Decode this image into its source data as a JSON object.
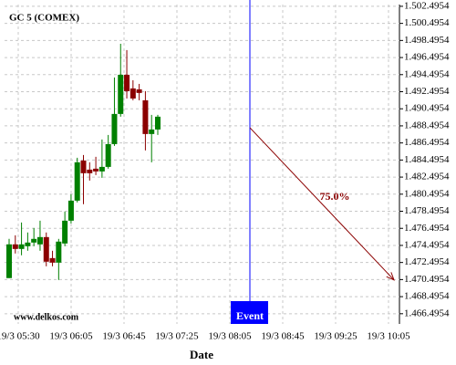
{
  "chart_data": {
    "type": "candlestick",
    "title": "GC 5 (COMEX)",
    "watermark": "www.delkos.com",
    "x_label": "Date",
    "x_tick_labels": [
      "19/3 05:30",
      "19/3 06:05",
      "19/3 06:45",
      "19/3 07:25",
      "19/3 08:05",
      "19/3 08:45",
      "19/3 09:25",
      "19/3 10:05"
    ],
    "open": [
      1470.67,
      1474.62,
      1474.08,
      1474.4,
      1474.83,
      1474.62,
      1475.47,
      1473.01,
      1472.48,
      1474.72,
      1477.39,
      1479.74,
      1484.44,
      1483.37,
      1483.48,
      1483.16,
      1483.69,
      1486.36,
      1489.89,
      1494.48,
      1492.88,
      1492.77,
      1491.49,
      1487.54,
      1488.07
    ],
    "high": [
      1475.26,
      1475.68,
      1477.18,
      1476.01,
      1476.54,
      1477.39,
      1476.01,
      1473.87,
      1475.26,
      1478.46,
      1480.49,
      1484.76,
      1485.08,
      1484.23,
      1484.87,
      1486.9,
      1487.43,
      1494.16,
      1498.11,
      1497.37,
      1493.84,
      1493.41,
      1492.56,
      1489.78,
      1489.78
    ],
    "low": [
      1470.67,
      1473.55,
      1473.34,
      1473.87,
      1474.4,
      1473.87,
      1472.05,
      1472.05,
      1470.45,
      1474.4,
      1477.07,
      1479.53,
      1479.32,
      1482.09,
      1482.73,
      1482.41,
      1483.48,
      1486.15,
      1489.57,
      1491.7,
      1491.49,
      1491.49,
      1485.62,
      1484.23,
      1487.43
    ],
    "close": [
      1474.62,
      1474.08,
      1474.62,
      1474.83,
      1475.26,
      1475.47,
      1472.59,
      1472.48,
      1474.94,
      1477.39,
      1479.74,
      1484.23,
      1482.95,
      1482.95,
      1483.16,
      1483.69,
      1486.36,
      1489.89,
      1494.48,
      1492.56,
      1491.7,
      1492.35,
      1487.54,
      1488.07,
      1489.57
    ],
    "up_color": "#008000",
    "down_color": "#8b0000",
    "event": {
      "label": "Event",
      "color": "#0000ff"
    },
    "projection": {
      "start": 1488.28,
      "end": 1470.45,
      "label": "75.0%",
      "color": "#8b0000"
    },
    "ylim": [
      1465.3,
      1502.7
    ],
    "yticks": [
      {
        "value": 1466.4954,
        "label": "1.466.4954"
      },
      {
        "value": 1468.4954,
        "label": "1.468.4954"
      },
      {
        "value": 1470.4954,
        "label": "1.470.4954"
      },
      {
        "value": 1472.4954,
        "label": "1.472.4954"
      },
      {
        "value": 1474.4954,
        "label": "1.474.4954"
      },
      {
        "value": 1476.4954,
        "label": "1.476.4954"
      },
      {
        "value": 1478.4954,
        "label": "1.478.4954"
      },
      {
        "value": 1480.4954,
        "label": "1.480.4954"
      },
      {
        "value": 1482.4954,
        "label": "1.482.4954"
      },
      {
        "value": 1484.4954,
        "label": "1.484.4954"
      },
      {
        "value": 1486.4954,
        "label": "1.486.4954"
      },
      {
        "value": 1488.4954,
        "label": "1.488.4954"
      },
      {
        "value": 1490.4954,
        "label": "1.490.4954"
      },
      {
        "value": 1492.4954,
        "label": "1.492.4954"
      },
      {
        "value": 1494.4954,
        "label": "1.494.4954"
      },
      {
        "value": 1496.4954,
        "label": "1.496.4954"
      },
      {
        "value": 1498.4954,
        "label": "1.498.4954"
      },
      {
        "value": 1500.4954,
        "label": "1.500.4954"
      },
      {
        "value": 1502.4954,
        "label": "1.502.4954"
      }
    ],
    "grid": true
  }
}
